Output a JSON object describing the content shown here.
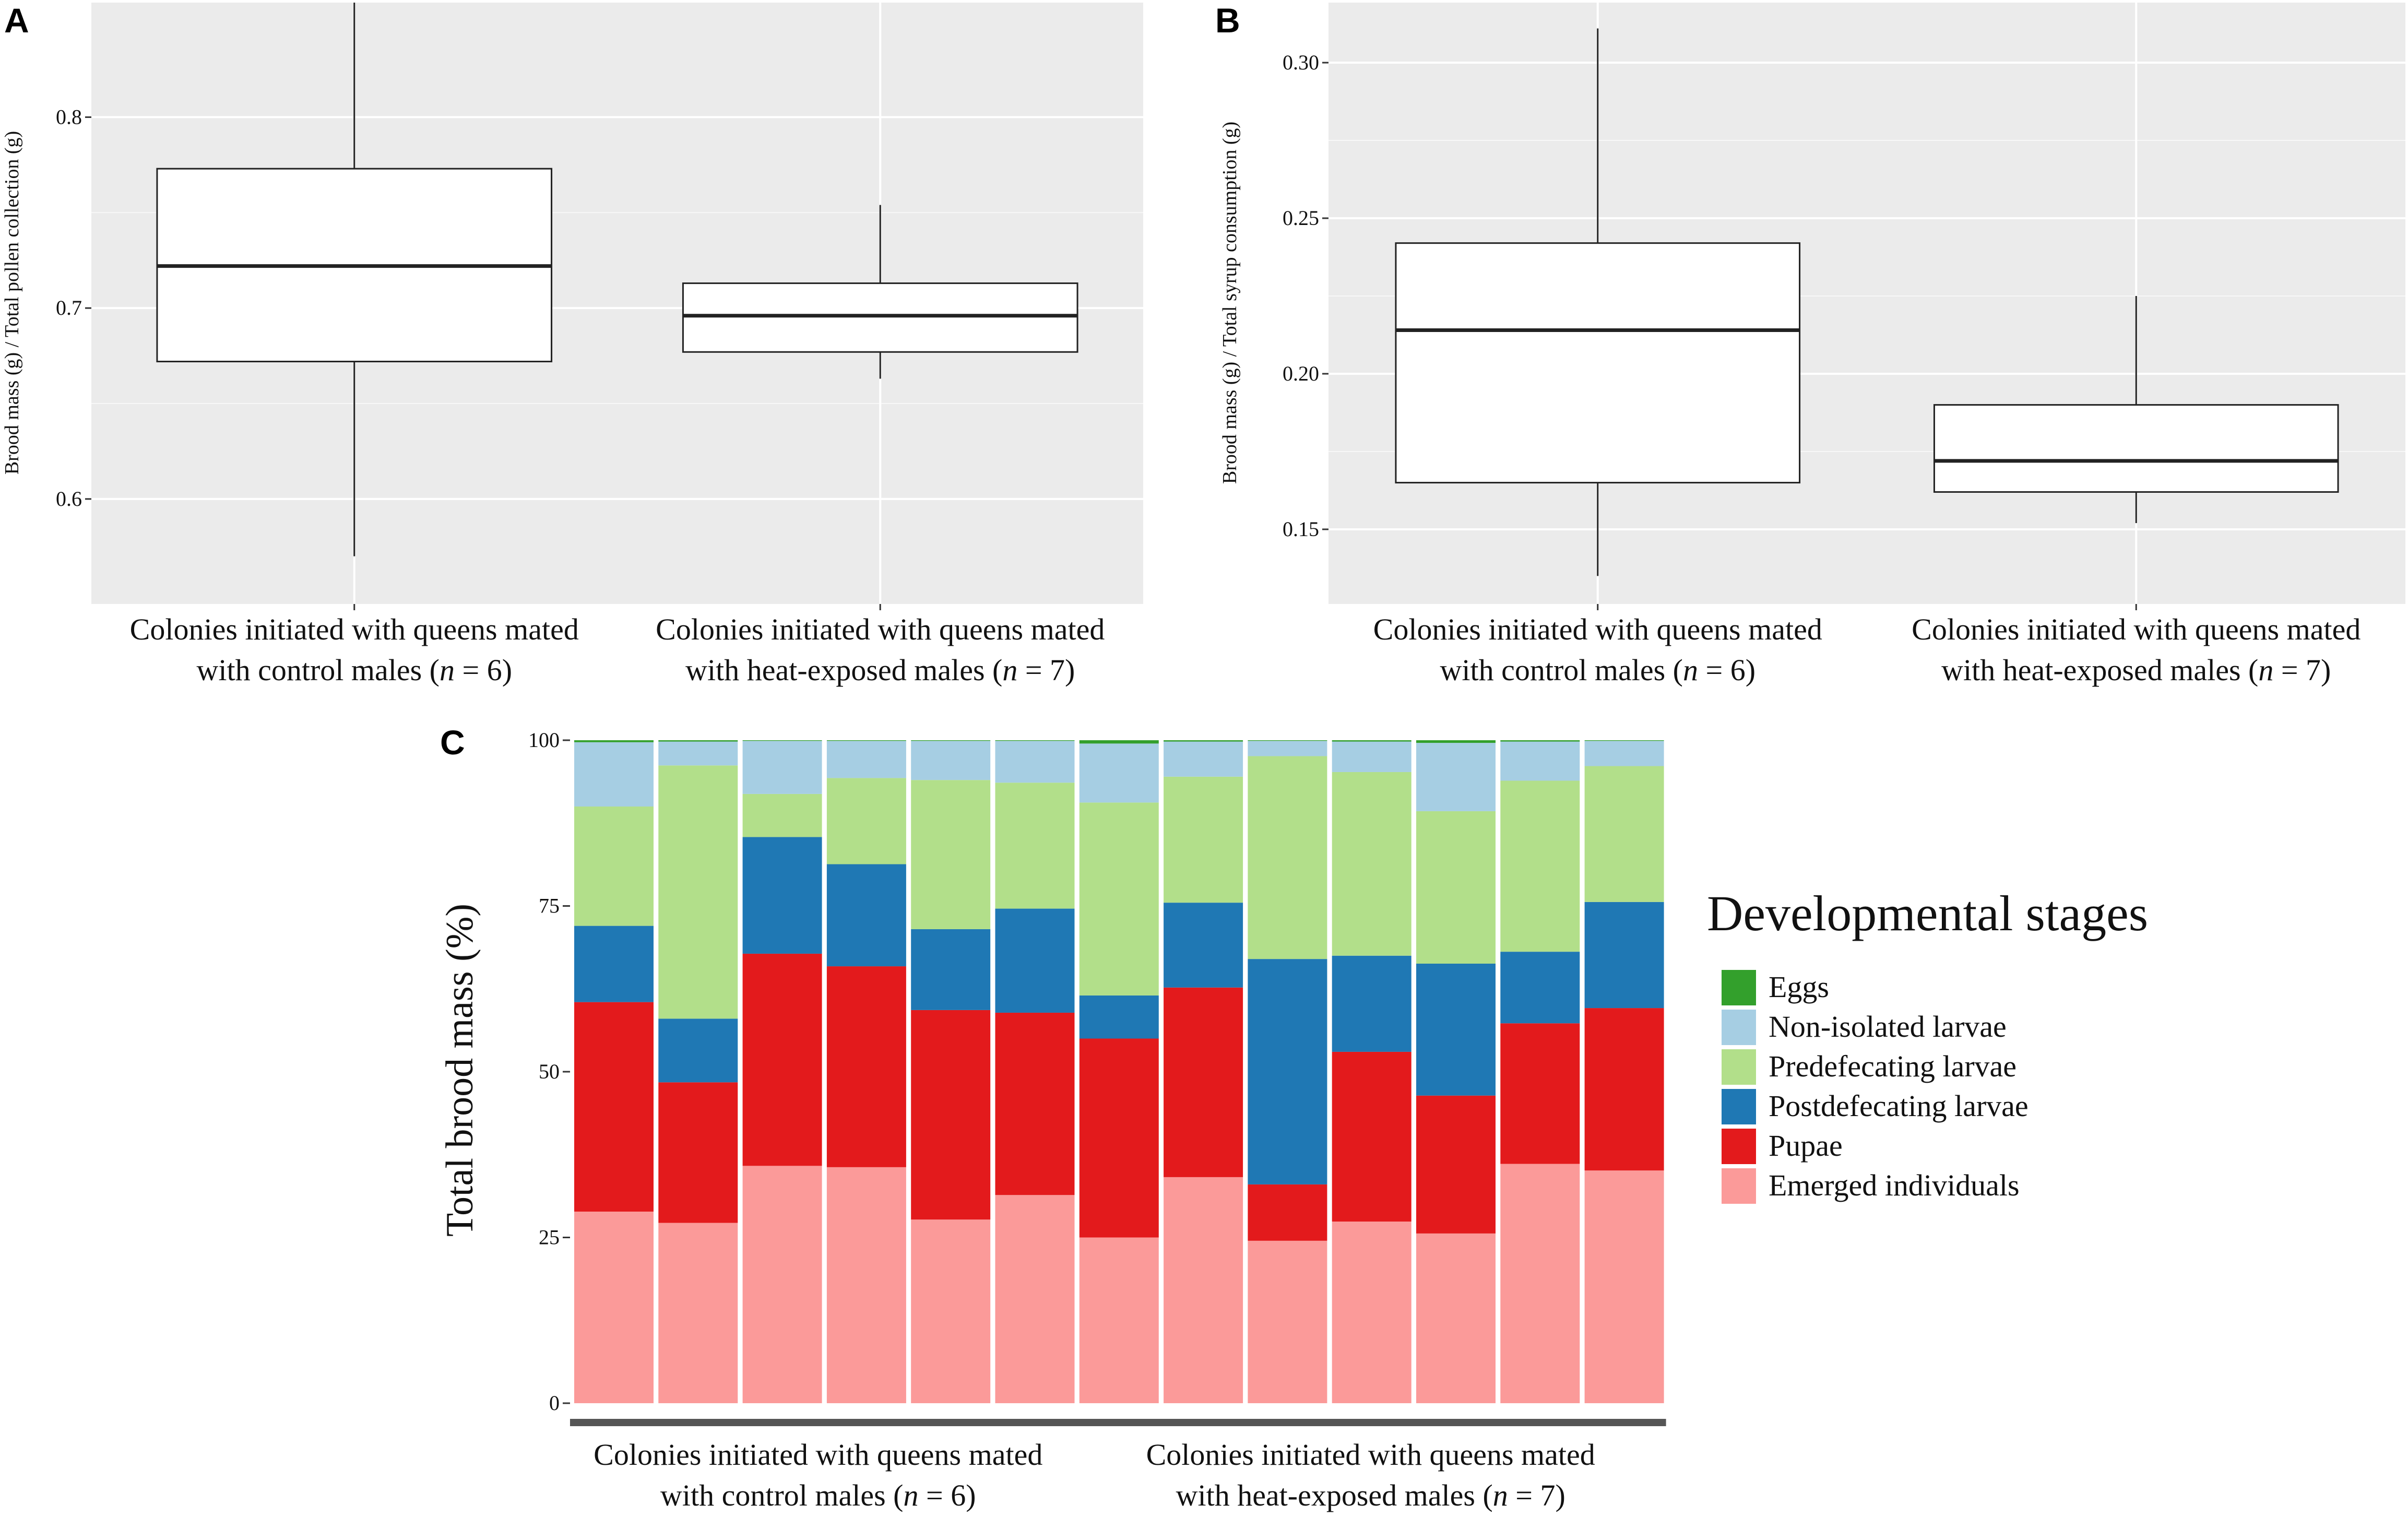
{
  "chart_data": [
    {
      "panel": "A",
      "type": "box",
      "ylabel": "Brood mass (g) / Total pollen collection (g)",
      "ylim": [
        0.545,
        0.86
      ],
      "yticks": [
        0.6,
        0.7,
        0.8
      ],
      "yticklabels": [
        "0.6",
        "0.7",
        "0.8"
      ],
      "groups": [
        {
          "line1": "Colonies initiated with queens mated",
          "pre": "with control males (",
          "n_var": "n",
          "post": " = 6)",
          "min": 0.57,
          "q1": 0.672,
          "median": 0.722,
          "q3": 0.773,
          "max": 0.86
        },
        {
          "line1": "Colonies initiated with queens mated",
          "pre": "with heat-exposed males (",
          "n_var": "n",
          "post": " = 7)",
          "min": 0.663,
          "q1": 0.677,
          "median": 0.696,
          "q3": 0.713,
          "max": 0.754
        }
      ]
    },
    {
      "panel": "B",
      "type": "box",
      "ylabel": "Brood mass (g) / Total syrup consumption (g)",
      "ylim": [
        0.126,
        0.3193
      ],
      "yticks": [
        0.15,
        0.2,
        0.25,
        0.3
      ],
      "yticklabels": [
        "0.15",
        "0.20",
        "0.25",
        "0.30"
      ],
      "groups": [
        {
          "line1": "Colonies initiated with queens mated",
          "pre": "with control males (",
          "n_var": "n",
          "post": " = 6)",
          "min": 0.135,
          "q1": 0.165,
          "median": 0.214,
          "q3": 0.242,
          "max": 0.311
        },
        {
          "line1": "Colonies initiated with queens mated",
          "pre": "with heat-exposed males (",
          "n_var": "n",
          "post": " = 7)",
          "min": 0.152,
          "q1": 0.162,
          "median": 0.172,
          "q3": 0.19,
          "max": 0.225
        }
      ]
    },
    {
      "panel": "C",
      "type": "stacked_bar",
      "ylabel": "Total brood mass (%)",
      "ylim": [
        0,
        100
      ],
      "yticks": [
        0,
        25,
        50,
        75,
        100
      ],
      "yticklabels": [
        "0",
        "25",
        "50",
        "75",
        "100"
      ],
      "legend_title": "Developmental stages",
      "series": [
        {
          "name": "Eggs",
          "color": "#33a02c",
          "values": [
            0.3,
            0.2,
            0.1,
            0.1,
            0.1,
            0.1,
            0.5,
            0.2,
            0.1,
            0.2,
            0.4,
            0.2,
            0.1
          ]
        },
        {
          "name": "Non-isolated larvae",
          "color": "#a6cee3",
          "values": [
            9.7,
            3.6,
            8.0,
            5.6,
            5.9,
            6.3,
            8.9,
            5.3,
            2.3,
            4.6,
            10.3,
            5.9,
            3.8
          ]
        },
        {
          "name": "Predefecating larvae",
          "color": "#b2df8a",
          "values": [
            18.0,
            38.2,
            6.5,
            13.0,
            22.5,
            19.0,
            29.1,
            19.0,
            30.6,
            27.7,
            23.0,
            25.8,
            20.5
          ]
        },
        {
          "name": "Postdefecating larvae",
          "color": "#1f78b4",
          "values": [
            11.5,
            9.6,
            17.6,
            15.4,
            12.2,
            15.7,
            6.5,
            12.8,
            34.0,
            14.5,
            19.9,
            10.8,
            16.0
          ]
        },
        {
          "name": "Pupae",
          "color": "#e31a1c",
          "values": [
            31.6,
            21.2,
            32.0,
            30.3,
            31.6,
            27.5,
            30.0,
            28.6,
            8.5,
            25.6,
            20.8,
            21.2,
            24.5
          ]
        },
        {
          "name": "Emerged individuals",
          "color": "#fb9a99",
          "values": [
            28.9,
            27.2,
            35.8,
            35.6,
            27.7,
            31.4,
            25.0,
            34.1,
            24.5,
            27.4,
            25.6,
            36.1,
            35.1
          ]
        }
      ],
      "groups": [
        {
          "line1": "Colonies initiated with queens mated",
          "pre": "with control males (",
          "n_var": "n",
          "post": " = 6)",
          "count": 6
        },
        {
          "line1": "Colonies initiated with queens mated",
          "pre": "with heat-exposed males (",
          "n_var": "n",
          "post": " = 7)",
          "count": 7
        }
      ]
    }
  ]
}
